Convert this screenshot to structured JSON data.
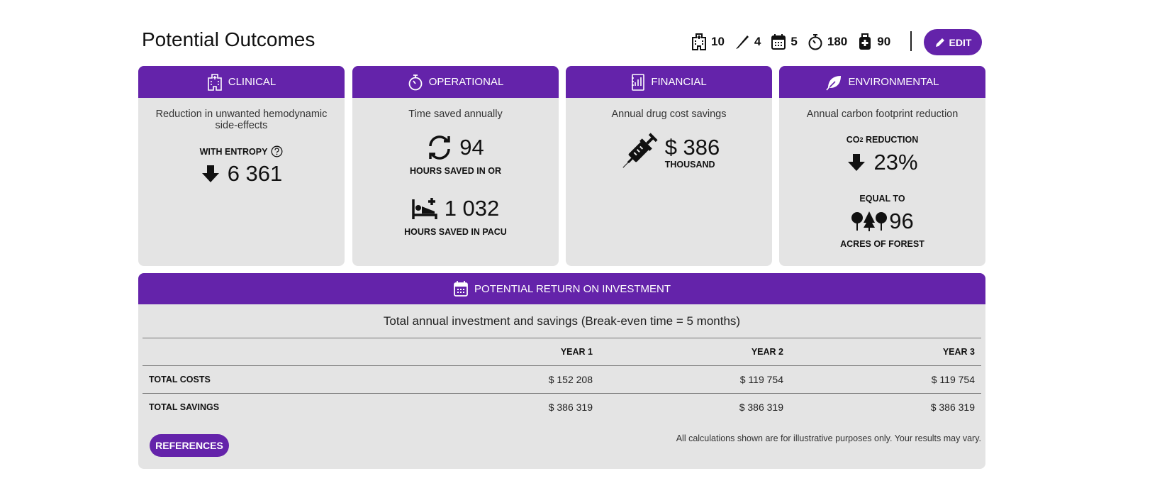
{
  "header": {
    "title": "Potential Outcomes",
    "stats": [
      "10",
      "4",
      "5",
      "180",
      "90"
    ],
    "edit_button": "EDIT"
  },
  "cards": [
    {
      "title": "CLINICAL",
      "description": "Reduction in unwanted hemodynamic side-effects",
      "metric_label": "WITH ENTROPY",
      "metric_value": "6 361"
    },
    {
      "title": "OPERATIONAL",
      "description": "Time saved annually",
      "metrics": [
        {
          "value": "94",
          "label": "HOURS SAVED IN OR"
        },
        {
          "value": "1 032",
          "label": "HOURS SAVED IN PACU"
        }
      ]
    },
    {
      "title": "FINANCIAL",
      "description": "Annual drug cost savings",
      "metric_value": "$ 386",
      "metric_unit": "THOUSAND"
    },
    {
      "title": "ENVIRONMENTAL",
      "description": "Annual carbon footprint reduction",
      "co2_label": {
        "prefix": "CO",
        "subscript": "2",
        "suffix": "REDUCTION"
      },
      "co2_value": "23%",
      "equal_label": "EQUAL TO",
      "forest_value": "96",
      "forest_label": "ACRES OF FOREST"
    }
  ],
  "roi": {
    "title": "POTENTIAL RETURN ON INVESTMENT",
    "subtitle": "Total annual investment and savings (Break-even time = 5 months)",
    "columns": [
      "YEAR 1",
      "YEAR 2",
      "YEAR 3"
    ],
    "rows": [
      {
        "label": "TOTAL COSTS",
        "values": [
          "$ 152 208",
          "$ 119 754",
          "$ 119 754"
        ]
      },
      {
        "label": "TOTAL SAVINGS",
        "values": [
          "$ 386 319",
          "$ 386 319",
          "$ 386 319"
        ]
      }
    ],
    "references_button": "REFERENCES",
    "disclaimer": "All calculations shown are for illustrative purposes only. Your results may vary."
  }
}
